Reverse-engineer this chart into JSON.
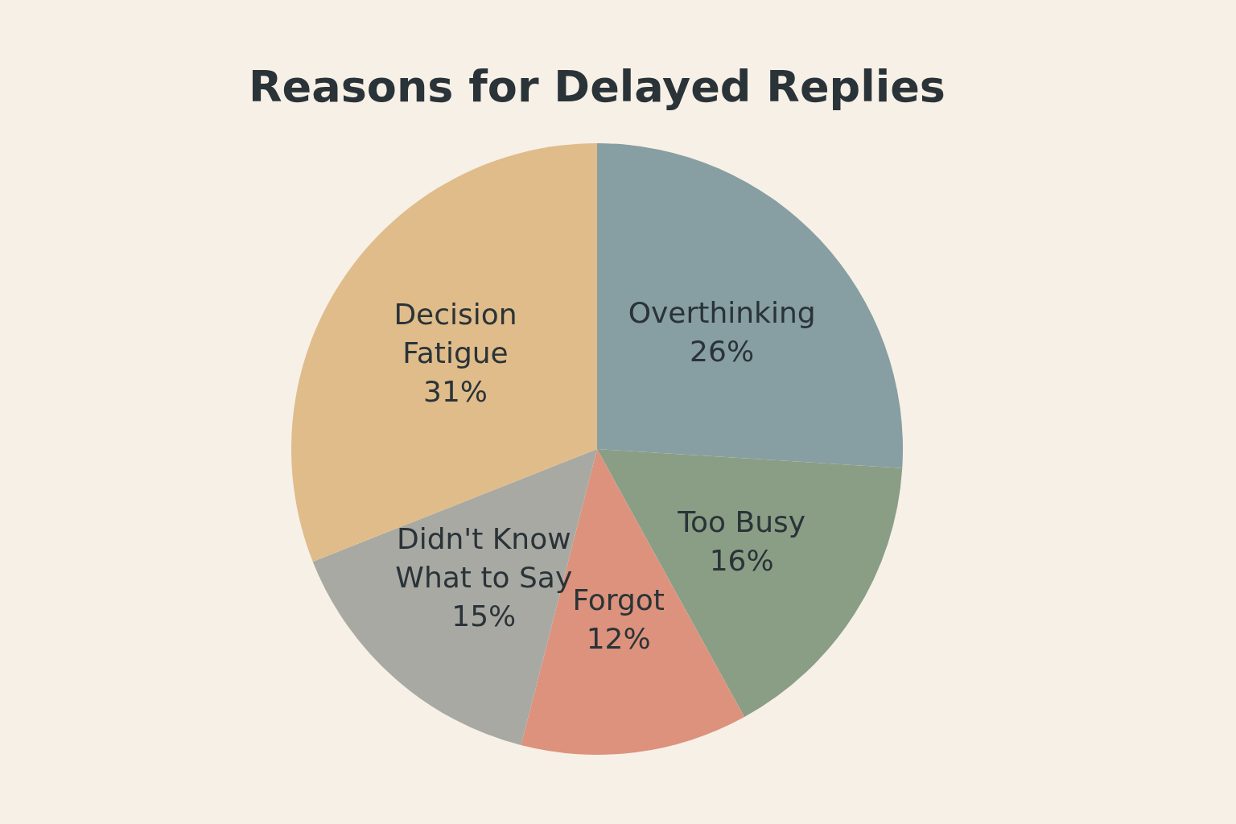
{
  "chart_data": {
    "type": "pie",
    "title": "Reasons for Delayed Replies",
    "categories": [
      "Overthinking",
      "Too Busy",
      "Forgot",
      "Didn't Know What to Say",
      "Decision Fatigue"
    ],
    "values": [
      26,
      16,
      12,
      15,
      31
    ],
    "value_labels": [
      "26%",
      "16%",
      "12%",
      "15%",
      "31%"
    ],
    "colors": [
      "#879ea3",
      "#8a9e86",
      "#dc927c",
      "#a8a9a3",
      "#dfbc8a"
    ],
    "legend": false
  }
}
